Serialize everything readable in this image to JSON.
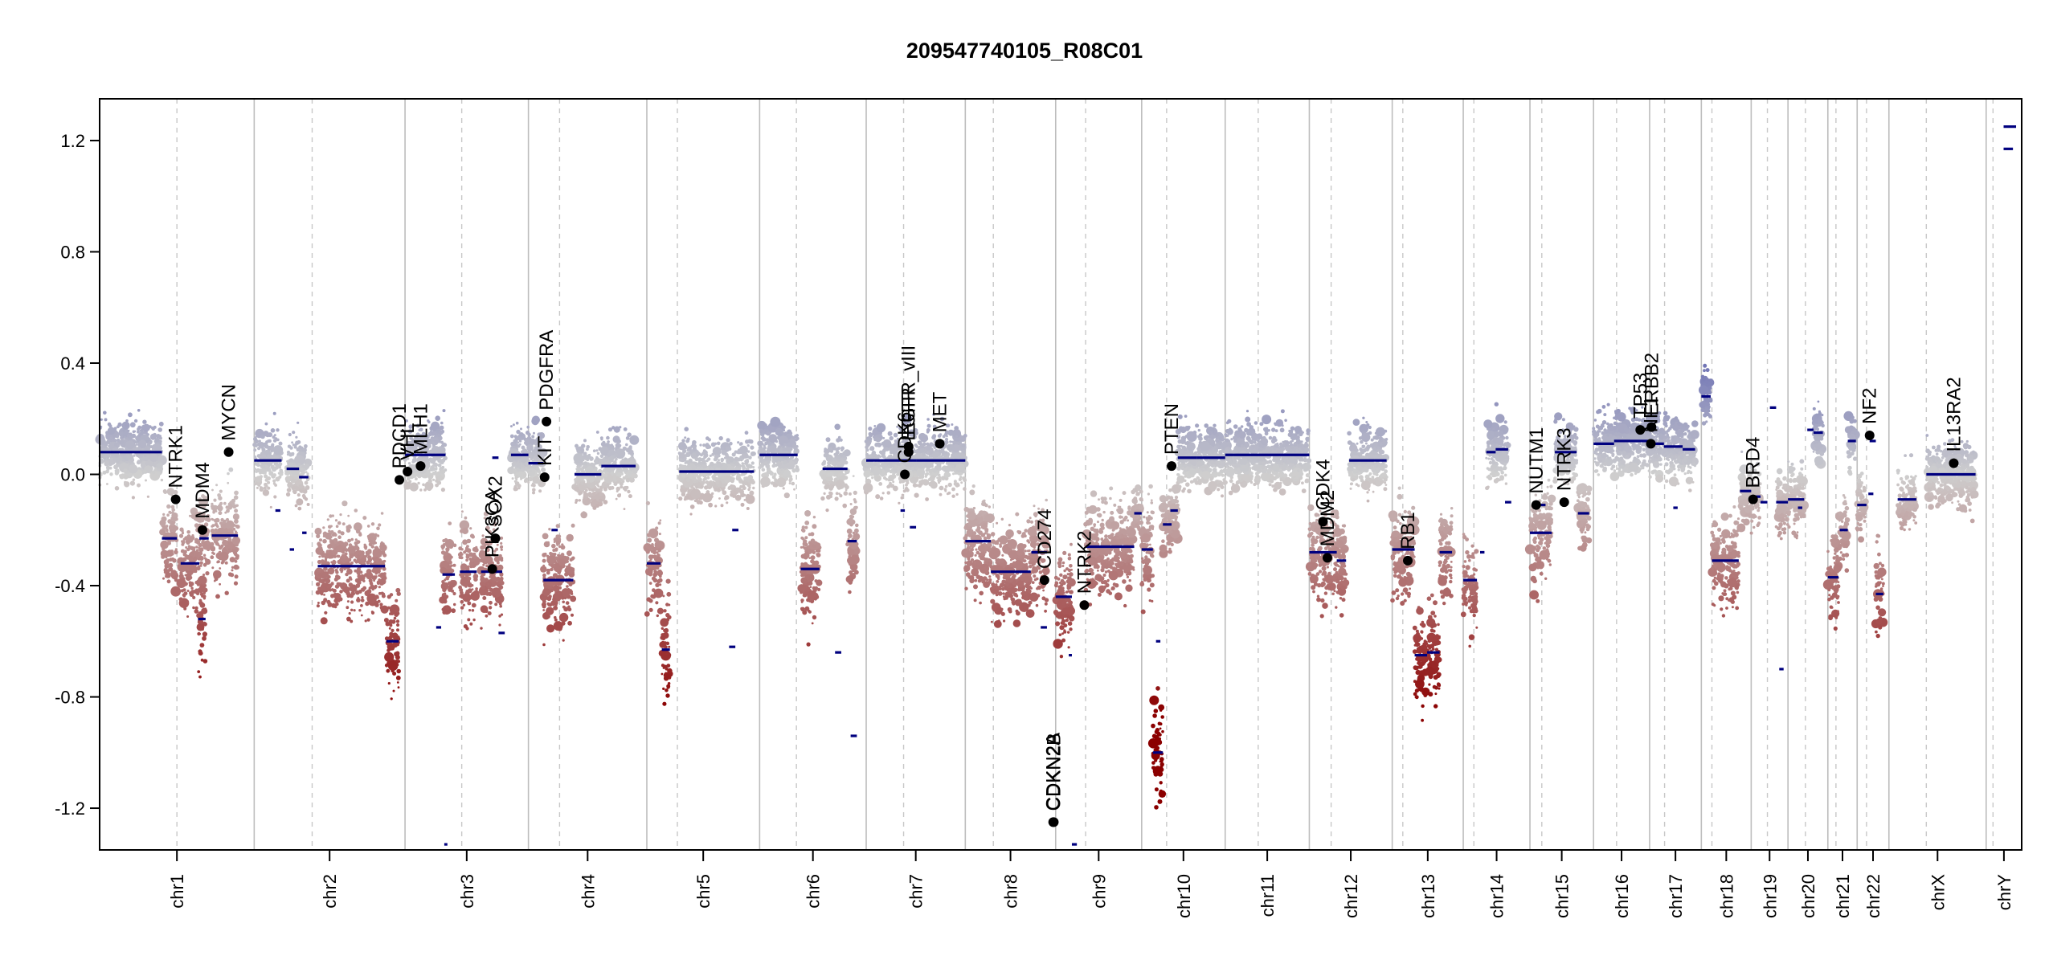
{
  "chart_data": {
    "type": "scatter",
    "title": "209547740105_R08C01",
    "xlabel": "",
    "ylabel": "",
    "ylim": [
      -1.35,
      1.35
    ],
    "yticks": [
      1.2,
      0.8,
      0.4,
      0.0,
      -0.4,
      -0.8,
      -1.2
    ],
    "ytick_labels": [
      "1.2",
      "0.8",
      "0.4",
      "0.0",
      "-0.4",
      "-0.8",
      "-1.2"
    ],
    "color_scale": {
      "high": "#6f73b4",
      "mid": "#cfcfcf",
      "low": "#8b0000"
    },
    "segment_color": "#00007f",
    "chromosomes": [
      {
        "name": "chr1",
        "start": 0,
        "end": 248,
        "centromere": 124
      },
      {
        "name": "chr2",
        "start": 248,
        "end": 490,
        "centromere": 341
      },
      {
        "name": "chr3",
        "start": 490,
        "end": 688,
        "centromere": 581
      },
      {
        "name": "chr4",
        "start": 688,
        "end": 878,
        "centromere": 738
      },
      {
        "name": "chr5",
        "start": 878,
        "end": 1059,
        "centromere": 927
      },
      {
        "name": "chr6",
        "start": 1059,
        "end": 1230,
        "centromere": 1118
      },
      {
        "name": "chr7",
        "start": 1230,
        "end": 1389,
        "centromere": 1290
      },
      {
        "name": "chr8",
        "start": 1389,
        "end": 1534,
        "centromere": 1434
      },
      {
        "name": "chr9",
        "start": 1534,
        "end": 1672,
        "centromere": 1582
      },
      {
        "name": "chr10",
        "start": 1672,
        "end": 1806,
        "centromere": 1712
      },
      {
        "name": "chr11",
        "start": 1806,
        "end": 1941,
        "centromere": 1859
      },
      {
        "name": "chr12",
        "start": 1941,
        "end": 2074,
        "centromere": 1976
      },
      {
        "name": "chr13",
        "start": 2074,
        "end": 2188,
        "centromere": 2091
      },
      {
        "name": "chr14",
        "start": 2188,
        "end": 2295,
        "centromere": 2205
      },
      {
        "name": "chr15",
        "start": 2295,
        "end": 2397,
        "centromere": 2314
      },
      {
        "name": "chr16",
        "start": 2397,
        "end": 2487,
        "centromere": 2434
      },
      {
        "name": "chr17",
        "start": 2487,
        "end": 2570,
        "centromere": 2511
      },
      {
        "name": "chr18",
        "start": 2570,
        "end": 2650,
        "centromere": 2587
      },
      {
        "name": "chr19",
        "start": 2650,
        "end": 2709,
        "centromere": 2676
      },
      {
        "name": "chr20",
        "start": 2709,
        "end": 2773,
        "centromere": 2737
      },
      {
        "name": "chr21",
        "start": 2773,
        "end": 2820,
        "centromere": 2786
      },
      {
        "name": "chr22",
        "start": 2820,
        "end": 2871,
        "centromere": 2835
      },
      {
        "name": "chrX",
        "start": 2871,
        "end": 3027,
        "centromere": 2931
      },
      {
        "name": "chrY",
        "start": 3027,
        "end": 3084,
        "centromere": 3038
      }
    ],
    "segments": [
      {
        "x0": 0,
        "x1": 100,
        "y": 0.08
      },
      {
        "x0": 100,
        "x1": 124,
        "y": -0.23
      },
      {
        "x0": 130,
        "x1": 160,
        "y": -0.32
      },
      {
        "x0": 160,
        "x1": 175,
        "y": -0.23
      },
      {
        "x0": 180,
        "x1": 222,
        "y": -0.22
      },
      {
        "x0": 158,
        "x1": 170,
        "y": -0.52
      },
      {
        "x0": 248,
        "x1": 292,
        "y": 0.05
      },
      {
        "x0": 300,
        "x1": 320,
        "y": 0.02
      },
      {
        "x0": 320,
        "x1": 335,
        "y": -0.01
      },
      {
        "x0": 282,
        "x1": 290,
        "y": -0.13
      },
      {
        "x0": 350,
        "x1": 458,
        "y": -0.33
      },
      {
        "x0": 305,
        "x1": 312,
        "y": -0.27
      },
      {
        "x0": 325,
        "x1": 332,
        "y": -0.21
      },
      {
        "x0": 460,
        "x1": 480,
        "y": -0.6
      },
      {
        "x0": 490,
        "x1": 555,
        "y": 0.07
      },
      {
        "x0": 550,
        "x1": 570,
        "y": -0.36
      },
      {
        "x0": 578,
        "x1": 605,
        "y": -0.35
      },
      {
        "x0": 612,
        "x1": 646,
        "y": -0.35
      },
      {
        "x0": 630,
        "x1": 640,
        "y": 0.06
      },
      {
        "x0": 660,
        "x1": 688,
        "y": 0.07
      },
      {
        "x0": 540,
        "x1": 548,
        "y": -0.55
      },
      {
        "x0": 553,
        "x1": 558,
        "y": -1.33
      },
      {
        "x0": 640,
        "x1": 650,
        "y": -0.57
      },
      {
        "x0": 688,
        "x1": 712,
        "y": 0.04
      },
      {
        "x0": 712,
        "x1": 760,
        "y": -0.38
      },
      {
        "x0": 762,
        "x1": 805,
        "y": 0.0
      },
      {
        "x0": 805,
        "x1": 860,
        "y": 0.03
      },
      {
        "x0": 725,
        "x1": 735,
        "y": -0.2
      },
      {
        "x0": 878,
        "x1": 900,
        "y": -0.32
      },
      {
        "x0": 902,
        "x1": 915,
        "y": -0.63
      },
      {
        "x0": 930,
        "x1": 1050,
        "y": 0.01
      },
      {
        "x0": 1015,
        "x1": 1025,
        "y": -0.2
      },
      {
        "x0": 1010,
        "x1": 1020,
        "y": -0.62
      },
      {
        "x0": 1059,
        "x1": 1120,
        "y": 0.07
      },
      {
        "x0": 1125,
        "x1": 1155,
        "y": -0.34
      },
      {
        "x0": 1160,
        "x1": 1200,
        "y": 0.02
      },
      {
        "x0": 1200,
        "x1": 1215,
        "y": -0.24
      },
      {
        "x0": 1180,
        "x1": 1190,
        "y": -0.64
      },
      {
        "x0": 1205,
        "x1": 1215,
        "y": -0.94
      },
      {
        "x0": 1230,
        "x1": 1310,
        "y": 0.05
      },
      {
        "x0": 1310,
        "x1": 1389,
        "y": 0.05
      },
      {
        "x0": 1300,
        "x1": 1310,
        "y": -0.19
      },
      {
        "x0": 1285,
        "x1": 1292,
        "y": -0.13
      },
      {
        "x0": 1389,
        "x1": 1430,
        "y": -0.24
      },
      {
        "x0": 1430,
        "x1": 1494,
        "y": -0.35
      },
      {
        "x0": 1495,
        "x1": 1520,
        "y": -0.28
      },
      {
        "x0": 1510,
        "x1": 1520,
        "y": -0.55
      },
      {
        "x0": 1534,
        "x1": 1560,
        "y": -0.44
      },
      {
        "x0": 1560,
        "x1": 1568,
        "y": -1.33
      },
      {
        "x0": 1582,
        "x1": 1660,
        "y": -0.26
      },
      {
        "x0": 1660,
        "x1": 1672,
        "y": -0.14
      },
      {
        "x0": 1555,
        "x1": 1560,
        "y": -0.65
      },
      {
        "x0": 1672,
        "x1": 1690,
        "y": -0.27
      },
      {
        "x0": 1690,
        "x1": 1706,
        "y": -1.0
      },
      {
        "x0": 1695,
        "x1": 1702,
        "y": -0.6
      },
      {
        "x0": 1706,
        "x1": 1720,
        "y": -0.18
      },
      {
        "x0": 1718,
        "x1": 1730,
        "y": -0.13
      },
      {
        "x0": 1730,
        "x1": 1760,
        "y": 0.06
      },
      {
        "x0": 1760,
        "x1": 1806,
        "y": 0.06
      },
      {
        "x0": 1806,
        "x1": 1941,
        "y": 0.07
      },
      {
        "x0": 1941,
        "x1": 1985,
        "y": -0.28
      },
      {
        "x0": 1985,
        "x1": 2000,
        "y": -0.31
      },
      {
        "x0": 2005,
        "x1": 2065,
        "y": 0.05
      },
      {
        "x0": 2074,
        "x1": 2110,
        "y": -0.27
      },
      {
        "x0": 2110,
        "x1": 2130,
        "y": -0.65
      },
      {
        "x0": 2130,
        "x1": 2150,
        "y": -0.64
      },
      {
        "x0": 2150,
        "x1": 2170,
        "y": -0.28
      },
      {
        "x0": 2188,
        "x1": 2210,
        "y": -0.38
      },
      {
        "x0": 2225,
        "x1": 2240,
        "y": 0.08
      },
      {
        "x0": 2240,
        "x1": 2260,
        "y": 0.09
      },
      {
        "x0": 2255,
        "x1": 2265,
        "y": -0.1
      },
      {
        "x0": 2215,
        "x1": 2222,
        "y": -0.28
      },
      {
        "x0": 2295,
        "x1": 2330,
        "y": -0.21
      },
      {
        "x0": 2335,
        "x1": 2370,
        "y": 0.08
      },
      {
        "x0": 2372,
        "x1": 2390,
        "y": -0.14
      },
      {
        "x0": 2310,
        "x1": 2320,
        "y": -0.11
      },
      {
        "x0": 2397,
        "x1": 2430,
        "y": 0.11
      },
      {
        "x0": 2430,
        "x1": 2487,
        "y": 0.12
      },
      {
        "x0": 2487,
        "x1": 2510,
        "y": 0.11
      },
      {
        "x0": 2510,
        "x1": 2540,
        "y": 0.1
      },
      {
        "x0": 2540,
        "x1": 2560,
        "y": 0.09
      },
      {
        "x0": 2525,
        "x1": 2532,
        "y": -0.12
      },
      {
        "x0": 2570,
        "x1": 2585,
        "y": 0.28
      },
      {
        "x0": 2587,
        "x1": 2630,
        "y": -0.31
      },
      {
        "x0": 2632,
        "x1": 2650,
        "y": -0.06
      },
      {
        "x0": 2650,
        "x1": 2665,
        "y": -0.08
      },
      {
        "x0": 2665,
        "x1": 2676,
        "y": -0.1
      },
      {
        "x0": 2680,
        "x1": 2690,
        "y": 0.24
      },
      {
        "x0": 2690,
        "x1": 2709,
        "y": -0.1
      },
      {
        "x0": 2695,
        "x1": 2702,
        "y": -0.7
      },
      {
        "x0": 2709,
        "x1": 2735,
        "y": -0.09
      },
      {
        "x0": 2740,
        "x1": 2750,
        "y": 0.16
      },
      {
        "x0": 2750,
        "x1": 2765,
        "y": 0.15
      },
      {
        "x0": 2725,
        "x1": 2732,
        "y": -0.12
      },
      {
        "x0": 2773,
        "x1": 2790,
        "y": -0.37
      },
      {
        "x0": 2792,
        "x1": 2805,
        "y": -0.2
      },
      {
        "x0": 2805,
        "x1": 2818,
        "y": 0.12
      },
      {
        "x0": 2820,
        "x1": 2835,
        "y": -0.11
      },
      {
        "x0": 2840,
        "x1": 2850,
        "y": 0.12
      },
      {
        "x0": 2850,
        "x1": 2862,
        "y": -0.43
      },
      {
        "x0": 2838,
        "x1": 2846,
        "y": -0.07
      },
      {
        "x0": 2885,
        "x1": 2915,
        "y": -0.09
      },
      {
        "x0": 2931,
        "x1": 3010,
        "y": 0.0
      },
      {
        "x0": 3055,
        "x1": 3070,
        "y": 1.17
      },
      {
        "x0": 3055,
        "x1": 3075,
        "y": 1.25
      }
    ],
    "genes": [
      {
        "label": "NTRK1",
        "x": 122,
        "y": -0.09
      },
      {
        "label": "MDM4",
        "x": 165,
        "y": -0.2
      },
      {
        "label": "MYCN",
        "x": 207,
        "y": 0.08
      },
      {
        "label": "PDCD1",
        "x": 481,
        "y": -0.02
      },
      {
        "label": "VHL",
        "x": 494,
        "y": 0.01
      },
      {
        "label": "MLH1",
        "x": 515,
        "y": 0.03
      },
      {
        "label": "SOX2",
        "x": 635,
        "y": -0.23
      },
      {
        "label": "PIK3CA",
        "x": 630,
        "y": -0.34
      },
      {
        "label": "PDGFRA",
        "x": 717,
        "y": 0.19
      },
      {
        "label": "KIT",
        "x": 714,
        "y": -0.01
      },
      {
        "label": "EGFR_vIII",
        "x": 1298,
        "y": 0.1
      },
      {
        "label": "EGFR",
        "x": 1298,
        "y": 0.08
      },
      {
        "label": "CDK6",
        "x": 1292,
        "y": 0.0
      },
      {
        "label": "MET",
        "x": 1348,
        "y": 0.11
      },
      {
        "label": "CD274",
        "x": 1516,
        "y": -0.38
      },
      {
        "label": "CDKN2A",
        "x": 1530,
        "y": -1.25
      },
      {
        "label": "CDKN2B",
        "x": 1531,
        "y": -1.25
      },
      {
        "label": "NTRK2",
        "x": 1580,
        "y": -0.47
      },
      {
        "label": "PTEN",
        "x": 1720,
        "y": 0.03
      },
      {
        "label": "CDK4",
        "x": 1963,
        "y": -0.17
      },
      {
        "label": "MDM2",
        "x": 1970,
        "y": -0.3
      },
      {
        "label": "RB1",
        "x": 2099,
        "y": -0.31
      },
      {
        "label": "NUTM1",
        "x": 2305,
        "y": -0.11
      },
      {
        "label": "NTRK3",
        "x": 2350,
        "y": -0.1
      },
      {
        "label": "TP53",
        "x": 2472,
        "y": 0.16
      },
      {
        "label": "ERBB2",
        "x": 2490,
        "y": 0.17
      },
      {
        "label": "NF1",
        "x": 2489,
        "y": 0.11
      },
      {
        "label": "BRD4",
        "x": 2653,
        "y": -0.09
      },
      {
        "label": "NF2",
        "x": 2840,
        "y": 0.14
      },
      {
        "label": "IL13RA2",
        "x": 2975,
        "y": 0.04
      }
    ]
  }
}
